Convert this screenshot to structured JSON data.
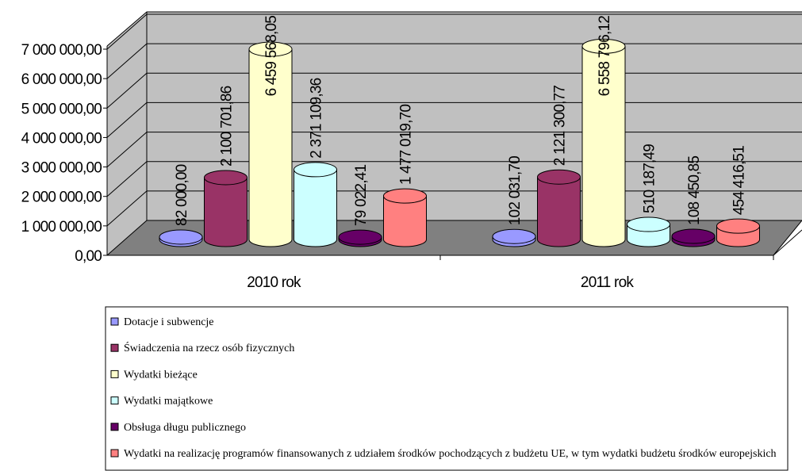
{
  "chart_data": {
    "type": "bar3d",
    "categories": [
      "2010 rok",
      "2011 rok"
    ],
    "series": [
      {
        "name": "Dotacje i subwencje",
        "color": "#9999ff",
        "values": [
          82000.0,
          102031.7
        ],
        "value_labels": [
          "82 000,00",
          "102 031,70"
        ]
      },
      {
        "name": "Świadczenia na rzecz osób fizycznych",
        "color": "#993366",
        "values": [
          2100701.86,
          2121300.77
        ],
        "value_labels": [
          "2 100 701,86",
          "2 121 300,77"
        ]
      },
      {
        "name": "Wydatki bieżące",
        "color": "#ffffcc",
        "values": [
          6459568.05,
          6558796.12
        ],
        "value_labels": [
          "6 459 568,05",
          "6 558 796,12"
        ]
      },
      {
        "name": "Wydatki majątkowe",
        "color": "#ccffff",
        "values": [
          2371109.36,
          510187.49
        ],
        "value_labels": [
          "2 371 109,36",
          "510 187,49"
        ]
      },
      {
        "name": "Obsługa długu publicznego",
        "color": "#660066",
        "values": [
          79022.41,
          108450.85
        ],
        "value_labels": [
          "79 022,41",
          "108 450,85"
        ]
      },
      {
        "name": "Wydatki na realizację programów finansowanych z udziałem środków pochodzących z budżetu UE, w tym wydatki budżetu środków europejskich",
        "color": "#ff8080",
        "values": [
          1477019.7,
          454416.51
        ],
        "value_labels": [
          "1 477 019,70",
          "454 416,51"
        ]
      }
    ],
    "ylim": [
      0,
      7000000
    ],
    "yticks": [
      {
        "value": 0,
        "label": "0,00"
      },
      {
        "value": 1000000,
        "label": "1 000 000,00"
      },
      {
        "value": 2000000,
        "label": "2 000 000,00"
      },
      {
        "value": 3000000,
        "label": "3 000 000,00"
      },
      {
        "value": 4000000,
        "label": "4 000 000,00"
      },
      {
        "value": 5000000,
        "label": "5 000 000,00"
      },
      {
        "value": 6000000,
        "label": "6 000 000,00"
      },
      {
        "value": 7000000,
        "label": "7 000 000,00"
      }
    ],
    "grid": true,
    "legend": "bottom"
  }
}
